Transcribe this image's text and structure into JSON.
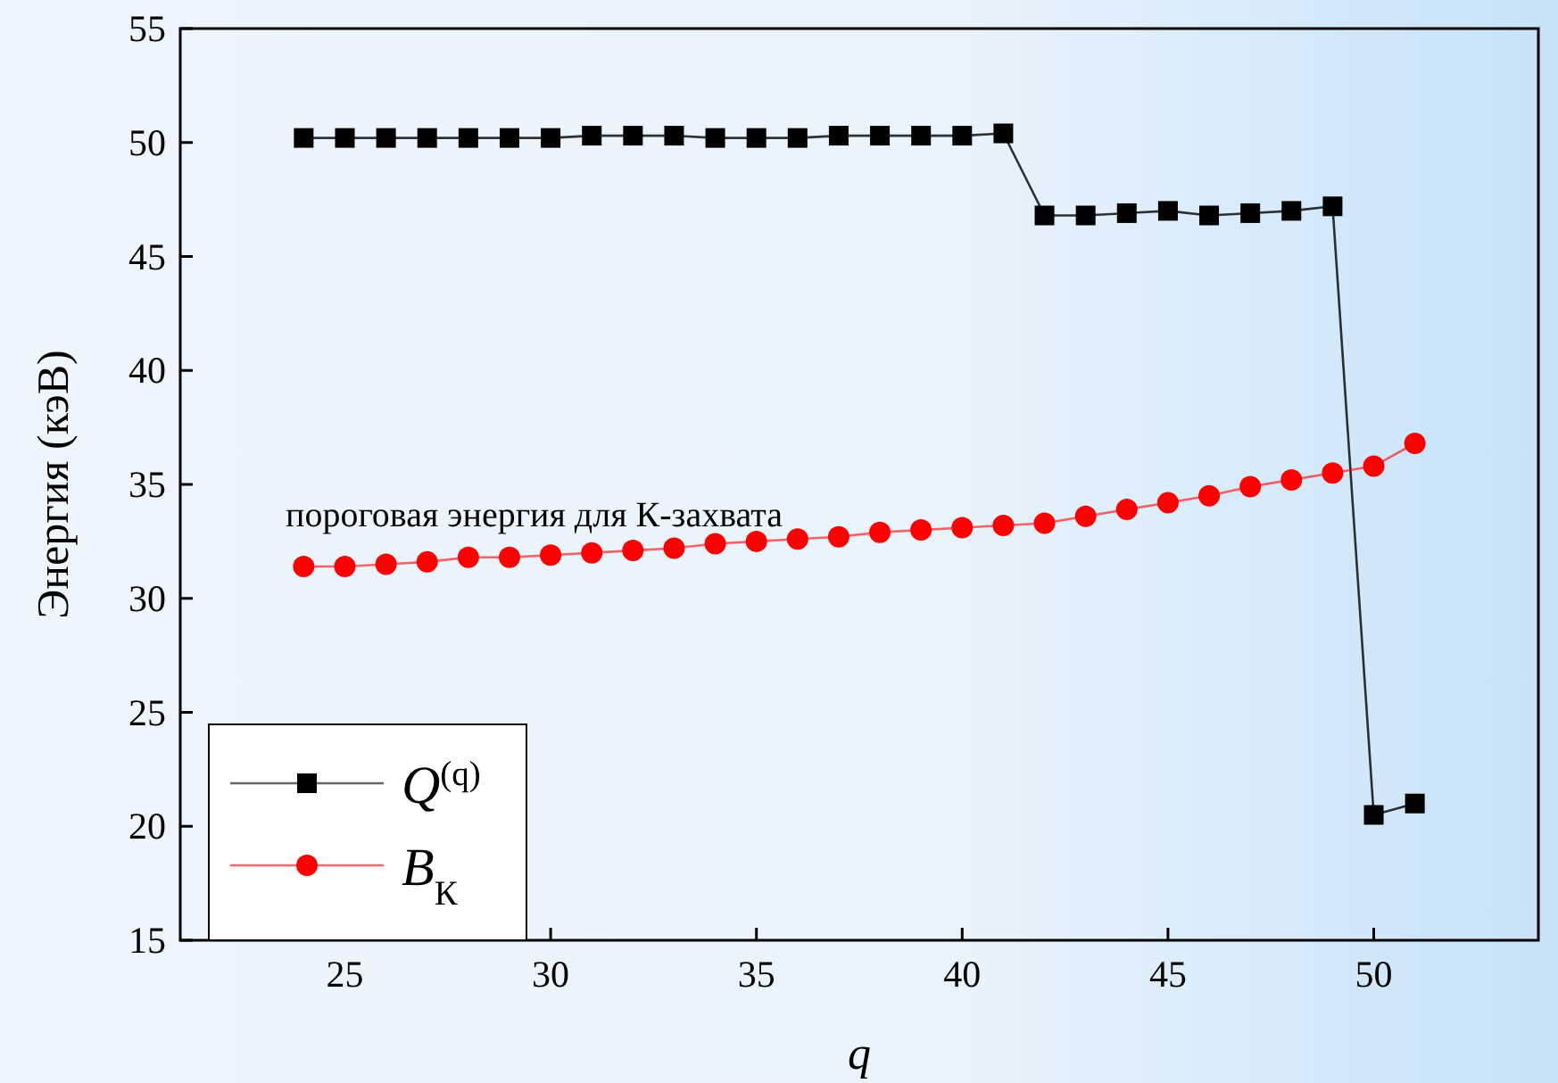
{
  "chart_data": {
    "type": "line",
    "xlabel": "q",
    "ylabel": "Энергия (кэВ)",
    "x": [
      24,
      25,
      26,
      27,
      28,
      29,
      30,
      31,
      32,
      33,
      34,
      35,
      36,
      37,
      38,
      39,
      40,
      41,
      42,
      43,
      44,
      45,
      46,
      47,
      48,
      49,
      50,
      51
    ],
    "series": [
      {
        "name": "Q$^{(q)}$",
        "color": "#000000",
        "marker": "square",
        "values": [
          50.2,
          50.2,
          50.2,
          50.2,
          50.2,
          50.2,
          50.2,
          50.3,
          50.3,
          50.3,
          50.2,
          50.2,
          50.2,
          50.3,
          50.3,
          50.3,
          50.3,
          50.4,
          46.8,
          46.8,
          46.9,
          47.0,
          46.8,
          46.9,
          47.0,
          47.2,
          20.5,
          21.0
        ]
      },
      {
        "name": "B$_{К}$",
        "color": "#ff0000",
        "marker": "circle",
        "values": [
          31.4,
          31.4,
          31.5,
          31.6,
          31.8,
          31.8,
          31.9,
          32.0,
          32.1,
          32.2,
          32.4,
          32.5,
          32.6,
          32.7,
          32.9,
          33.0,
          33.1,
          33.2,
          33.3,
          33.6,
          33.9,
          34.2,
          34.5,
          34.9,
          35.2,
          35.5,
          35.8,
          36.8
        ]
      }
    ],
    "annotations": [
      "пороговая энергия для К-захвата"
    ],
    "xlim": [
      21,
      54
    ],
    "xticks": [
      25,
      30,
      35,
      40,
      45,
      50
    ],
    "ylim": [
      15,
      55
    ],
    "yticks": [
      15,
      20,
      25,
      30,
      35,
      40,
      45,
      50,
      55
    ],
    "grid": false,
    "legend": "bottom left",
    "line_style": "solid"
  }
}
